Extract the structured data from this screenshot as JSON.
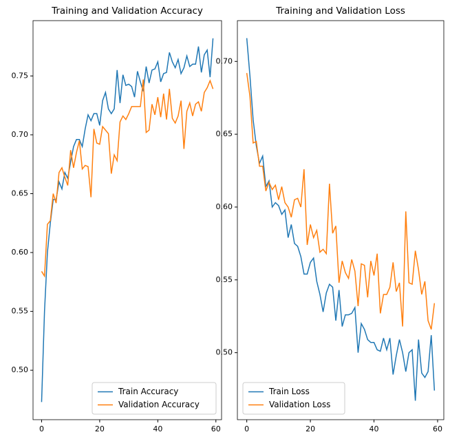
{
  "chart_data": [
    {
      "type": "line",
      "title": "Training and Validation Accuracy",
      "x": [
        0,
        1,
        2,
        3,
        4,
        5,
        6,
        7,
        8,
        9,
        10,
        11,
        12,
        13,
        14,
        15,
        16,
        17,
        18,
        19,
        20,
        21,
        22,
        23,
        24,
        25,
        26,
        27,
        28,
        29,
        30,
        31,
        32,
        33,
        34,
        35,
        36,
        37,
        38,
        39,
        40,
        41,
        42,
        43,
        44,
        45,
        46,
        47,
        48,
        49,
        50,
        51,
        52,
        53,
        54,
        55,
        56,
        57,
        58,
        59
      ],
      "series": [
        {
          "name": "Train Accuracy",
          "color": "#1f77b4",
          "values": [
            0.473,
            0.55,
            0.6,
            0.625,
            0.645,
            0.645,
            0.66,
            0.654,
            0.668,
            0.663,
            0.677,
            0.69,
            0.696,
            0.696,
            0.69,
            0.705,
            0.717,
            0.712,
            0.718,
            0.718,
            0.708,
            0.729,
            0.736,
            0.722,
            0.718,
            0.722,
            0.755,
            0.727,
            0.751,
            0.742,
            0.743,
            0.741,
            0.732,
            0.754,
            0.745,
            0.737,
            0.758,
            0.744,
            0.755,
            0.756,
            0.762,
            0.745,
            0.752,
            0.753,
            0.77,
            0.762,
            0.757,
            0.764,
            0.752,
            0.757,
            0.767,
            0.758,
            0.76,
            0.76,
            0.775,
            0.753,
            0.768,
            0.772,
            0.749,
            0.782
          ]
        },
        {
          "name": "Validation Accuracy",
          "color": "#ff7f0e",
          "values": [
            0.584,
            0.58,
            0.624,
            0.627,
            0.65,
            0.642,
            0.668,
            0.672,
            0.664,
            0.657,
            0.687,
            0.672,
            0.685,
            0.695,
            0.671,
            0.674,
            0.673,
            0.647,
            0.705,
            0.693,
            0.692,
            0.707,
            0.704,
            0.701,
            0.667,
            0.683,
            0.678,
            0.711,
            0.716,
            0.713,
            0.718,
            0.724,
            0.724,
            0.724,
            0.724,
            0.747,
            0.702,
            0.704,
            0.726,
            0.717,
            0.732,
            0.715,
            0.735,
            0.713,
            0.739,
            0.714,
            0.71,
            0.716,
            0.729,
            0.688,
            0.72,
            0.727,
            0.716,
            0.726,
            0.728,
            0.72,
            0.736,
            0.74,
            0.746,
            0.739
          ]
        }
      ],
      "xlim": [
        -2.95,
        61.95
      ],
      "xticks": [
        0,
        20,
        40,
        60
      ],
      "ylim": [
        0.458,
        0.797
      ],
      "yticks": [
        {
          "value": 0.5,
          "label": "0.50"
        },
        0.55,
        {
          "value": 0.6,
          "label": "0.60"
        },
        0.65,
        {
          "value": 0.7,
          "label": "0.70"
        },
        0.75
      ],
      "legend": "lower right"
    },
    {
      "type": "line",
      "title": "Training and Validation Loss",
      "x": [
        0,
        1,
        2,
        3,
        4,
        5,
        6,
        7,
        8,
        9,
        10,
        11,
        12,
        13,
        14,
        15,
        16,
        17,
        18,
        19,
        20,
        21,
        22,
        23,
        24,
        25,
        26,
        27,
        28,
        29,
        30,
        31,
        32,
        33,
        34,
        35,
        36,
        37,
        38,
        39,
        40,
        41,
        42,
        43,
        44,
        45,
        46,
        47,
        48,
        49,
        50,
        51,
        52,
        53,
        54,
        55,
        56,
        57,
        58,
        59
      ],
      "series": [
        {
          "name": "Train Loss",
          "color": "#1f77b4",
          "values": [
            0.716,
            0.69,
            0.66,
            0.642,
            0.63,
            0.635,
            0.614,
            0.618,
            0.6,
            0.603,
            0.601,
            0.595,
            0.598,
            0.579,
            0.588,
            0.575,
            0.573,
            0.566,
            0.554,
            0.554,
            0.562,
            0.565,
            0.549,
            0.54,
            0.528,
            0.541,
            0.547,
            0.545,
            0.522,
            0.543,
            0.518,
            0.526,
            0.526,
            0.527,
            0.531,
            0.5,
            0.52,
            0.516,
            0.509,
            0.507,
            0.507,
            0.502,
            0.501,
            0.51,
            0.502,
            0.51,
            0.485,
            0.498,
            0.509,
            0.5,
            0.487,
            0.5,
            0.502,
            0.467,
            0.509,
            0.486,
            0.483,
            0.487,
            0.512,
            0.474
          ]
        },
        {
          "name": "Validation Loss",
          "color": "#ff7f0e",
          "values": [
            0.692,
            0.676,
            0.644,
            0.645,
            0.628,
            0.628,
            0.611,
            0.617,
            0.612,
            0.615,
            0.605,
            0.614,
            0.603,
            0.6,
            0.593,
            0.605,
            0.606,
            0.6,
            0.626,
            0.574,
            0.588,
            0.579,
            0.584,
            0.569,
            0.571,
            0.568,
            0.616,
            0.582,
            0.587,
            0.548,
            0.563,
            0.555,
            0.551,
            0.564,
            0.556,
            0.532,
            0.561,
            0.56,
            0.538,
            0.563,
            0.553,
            0.568,
            0.527,
            0.54,
            0.54,
            0.545,
            0.562,
            0.542,
            0.548,
            0.518,
            0.597,
            0.548,
            0.547,
            0.57,
            0.557,
            0.54,
            0.549,
            0.522,
            0.516,
            0.534
          ]
        }
      ],
      "xlim": [
        -2.95,
        61.95
      ],
      "xticks": [
        0,
        20,
        40,
        60
      ],
      "ylim": [
        0.454,
        0.728
      ],
      "yticks": [
        {
          "value": 0.5,
          "label": "0.50"
        },
        0.55,
        {
          "value": 0.6,
          "label": "0.60"
        },
        0.65,
        {
          "value": 0.7,
          "label": "0.70"
        }
      ],
      "legend": "lower left"
    }
  ]
}
